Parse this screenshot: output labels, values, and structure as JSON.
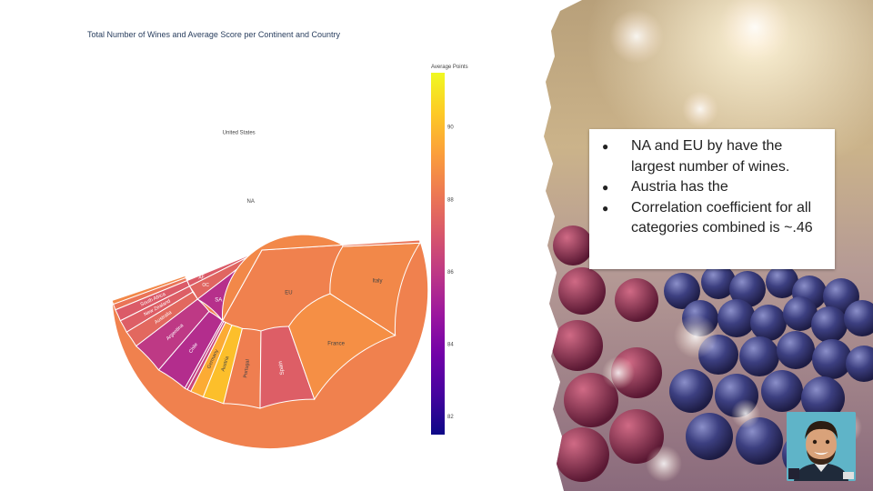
{
  "slide": {
    "bullets": [
      "NA and EU by have the largest number of wines.",
      "Austria has the",
      "Correlation coefficient for all categories combined is ~.46"
    ]
  },
  "chart_data": {
    "type": "sunburst",
    "title": "Total Number of Wines and Average Score per Continent and Country",
    "colorbar": {
      "title": "Average Points",
      "range": [
        81.5,
        91.5
      ],
      "ticks": [
        82,
        84,
        86,
        88,
        90
      ],
      "colorscale": [
        "#0d0887",
        "#46039f",
        "#7201a8",
        "#9c179e",
        "#bd3786",
        "#d8576b",
        "#ed7953",
        "#fb9f3a",
        "#fdca26",
        "#f0f921"
      ]
    },
    "continents": [
      {
        "label": "NA",
        "count": 55,
        "score": 88.4,
        "countries": [
          {
            "label": "United States",
            "count": 54,
            "score": 88.4
          },
          {
            "label": "",
            "count": 0.4,
            "score": 88.6
          },
          {
            "label": "",
            "count": 0.6,
            "score": 88.0
          }
        ]
      },
      {
        "label": "AF",
        "count": 1.2,
        "score": 87.2,
        "countries": [
          {
            "label": "South Africa",
            "count": 1.2,
            "score": 87.2
          }
        ]
      },
      {
        "label": "OC",
        "count": 3.0,
        "score": 87.5,
        "countries": [
          {
            "label": "New Zealand",
            "count": 1.3,
            "score": 87.3
          },
          {
            "label": "Australia",
            "count": 1.7,
            "score": 87.6
          }
        ]
      },
      {
        "label": "SA",
        "count": 6.5,
        "score": 85.7,
        "countries": [
          {
            "label": "Argentina",
            "count": 3.3,
            "score": 86.0
          },
          {
            "label": "Chile",
            "count": 3.2,
            "score": 85.6
          }
        ]
      },
      {
        "label": "EU",
        "count": 34,
        "score": 88.6,
        "countries": [
          {
            "label": "",
            "count": 0.3,
            "score": 86.0
          },
          {
            "label": "",
            "count": 0.4,
            "score": 86.5
          },
          {
            "label": "Germany",
            "count": 1.4,
            "score": 89.6
          },
          {
            "label": "Austria",
            "count": 2.2,
            "score": 90.1
          },
          {
            "label": "Portugal",
            "count": 3.8,
            "score": 88.3
          },
          {
            "label": "Spain",
            "count": 5.7,
            "score": 87.3
          },
          {
            "label": "France",
            "count": 10.8,
            "score": 88.8
          },
          {
            "label": "Italy",
            "count": 10.0,
            "score": 88.6
          },
          {
            "label": "",
            "count": 0.3,
            "score": 88.0
          }
        ]
      }
    ]
  }
}
